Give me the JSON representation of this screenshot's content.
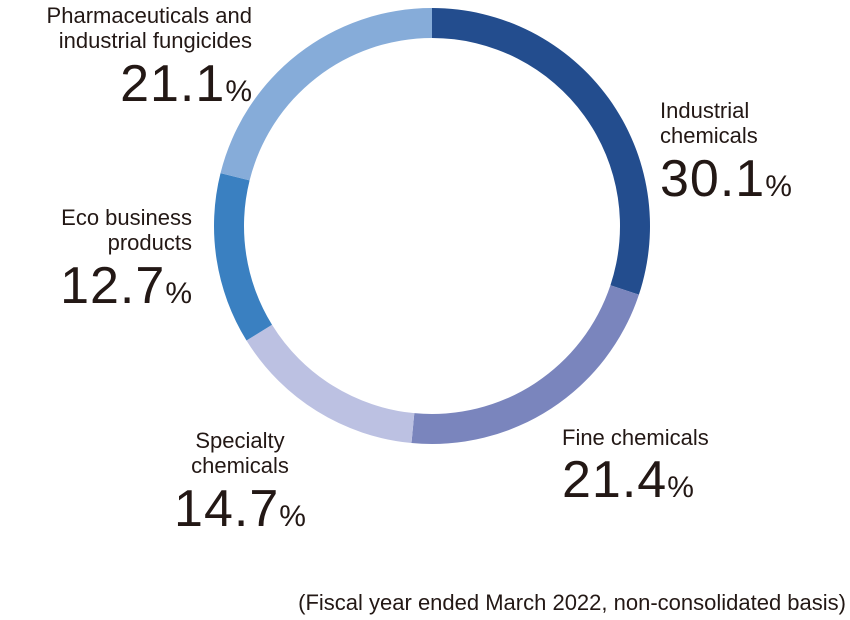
{
  "chart_data": {
    "type": "pie",
    "style": "donut",
    "start": "top, clockwise",
    "categories": [
      "Industrial chemicals",
      "Fine chemicals",
      "Specialty chemicals",
      "Eco business products",
      "Pharmaceuticals and industrial fungicides"
    ],
    "values": [
      30.1,
      21.4,
      14.7,
      12.7,
      21.1
    ],
    "unit": "%",
    "colors": [
      "#234d8e",
      "#7a85bd",
      "#bcc1e2",
      "#3a80c1",
      "#86acd9"
    ],
    "segments": [
      {
        "name_lines": [
          "Industrial",
          "chemicals"
        ],
        "value": "30.1",
        "unit": "%"
      },
      {
        "name_lines": [
          "Fine chemicals"
        ],
        "value": "21.4",
        "unit": "%"
      },
      {
        "name_lines": [
          "Specialty",
          "chemicals"
        ],
        "value": "14.7",
        "unit": "%"
      },
      {
        "name_lines": [
          "Eco business",
          "products"
        ],
        "value": "12.7",
        "unit": "%"
      },
      {
        "name_lines": [
          "Pharmaceuticals and",
          "industrial fungicides"
        ],
        "value": "21.1",
        "unit": "%"
      }
    ],
    "footnote": "(Fiscal year ended March 2022, non-consolidated basis)"
  }
}
